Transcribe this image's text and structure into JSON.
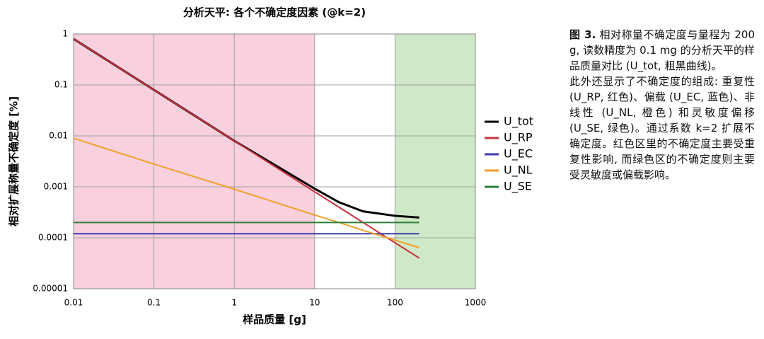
{
  "chart_data": {
    "type": "line",
    "title": "分析天平: 各个不确定度因素 (@k=2)",
    "x_label": "样品质量 [g]",
    "y_label": "相对扩展称量不确定度 [%]",
    "x": [
      0.01,
      0.1,
      1,
      10,
      20,
      40,
      100,
      200
    ],
    "series": [
      {
        "name": "U_tot",
        "color": "#000000",
        "values": [
          0.8,
          0.08,
          0.008,
          0.00092,
          0.0005,
          0.00033,
          0.00027,
          0.00025
        ]
      },
      {
        "name": "U_RP",
        "color": "#c8323c",
        "values": [
          0.8,
          0.08,
          0.008,
          0.0008,
          0.0004,
          0.0002,
          8e-05,
          4e-05
        ]
      },
      {
        "name": "U_EC",
        "color": "#3c3caa",
        "values": [
          0.00012,
          0.00012,
          0.00012,
          0.00012,
          0.00012,
          0.00012,
          0.00012,
          0.00012
        ]
      },
      {
        "name": "U_NL",
        "color": "#f0a028",
        "values": [
          0.009,
          0.0028,
          0.0009,
          0.00028,
          0.0002,
          0.00014,
          9e-05,
          6.4e-05
        ]
      },
      {
        "name": "U_SE",
        "color": "#2e7d3c",
        "values": [
          0.0002,
          0.0002,
          0.0002,
          0.0002,
          0.0002,
          0.0002,
          0.0002,
          0.0002
        ]
      }
    ],
    "regions": [
      {
        "from": 0.01,
        "to": 10,
        "color": "#f8d0de"
      },
      {
        "from": 100,
        "to": 1000,
        "color": "#cfe8c8"
      }
    ],
    "xlim": [
      0.01,
      1000
    ],
    "ylim": [
      1e-05,
      1
    ],
    "xticks": [
      0.01,
      0.1,
      1,
      10,
      100,
      1000
    ],
    "yticks": [
      1e-05,
      0.0001,
      0.001,
      0.01,
      0.1,
      1
    ],
    "log_x": true,
    "log_y": true,
    "grid": true,
    "legend": "right"
  },
  "caption": {
    "label": "图 3.",
    "paragraphs": [
      "相对称量不确定度与量程为 200 g, 读数精度为 0.1 mg 的分析天平的样品质量对比 (U_tot, 粗黑曲线)。",
      "此外还显示了不确定度的组成: 重复性 (U_RP, 红色)、偏载 (U_EC, 蓝色)、非线性 (U_NL, 橙色) 和灵敏度偏移 (U_SE, 绿色)。通过系数 k=2 扩展不确定度。红色区里的不确定度主要受重复性影响, 而绿色区的不确定度则主要受灵敏度或偏载影响。"
    ]
  }
}
